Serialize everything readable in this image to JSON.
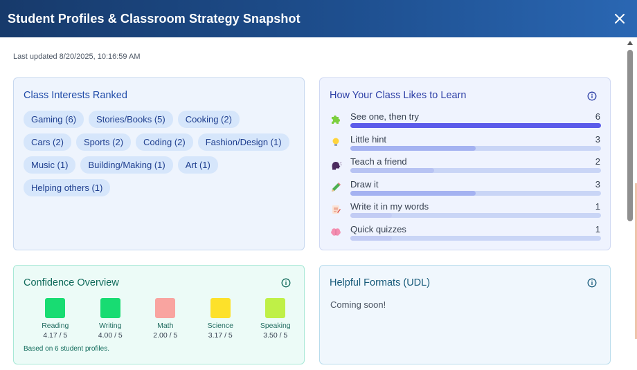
{
  "header": {
    "title": "Student Profiles & Classroom Strategy Snapshot",
    "close_icon": "close-icon"
  },
  "last_updated": "Last updated 8/20/2025, 10:16:59 AM",
  "interests": {
    "title": "Class Interests Ranked",
    "rows": [
      [
        "Gaming (6)",
        "Stories/Books (5)",
        "Cooking (2)"
      ],
      [
        "Cars (2)",
        "Sports (2)",
        "Coding (2)",
        "Fashion/Design (1)"
      ],
      [
        "Music (1)",
        "Building/Making (1)",
        "Art (1)"
      ],
      [
        "Helping others (1)"
      ]
    ]
  },
  "learn": {
    "title": "How Your Class Likes to Learn",
    "max": 6,
    "items": [
      {
        "emoji": "puzzle-icon",
        "label": "See one, then try",
        "count": "6",
        "value": 6,
        "color": "#5b5bea"
      },
      {
        "emoji": "lightbulb-icon",
        "label": "Little hint",
        "count": "3",
        "value": 3,
        "color": "#a4b2f1"
      },
      {
        "emoji": "speaking-head-icon",
        "label": "Teach a friend",
        "count": "2",
        "value": 2,
        "color": "#b7c3f3"
      },
      {
        "emoji": "pencil-icon",
        "label": "Draw it",
        "count": "3",
        "value": 3,
        "color": "#a4b2f1"
      },
      {
        "emoji": "memo-icon",
        "label": "Write it in my words",
        "count": "1",
        "value": 1,
        "color": "#c2ccf4"
      },
      {
        "emoji": "brain-icon",
        "label": "Quick quizzes",
        "count": "1",
        "value": 1,
        "color": "#c2ccf4"
      }
    ]
  },
  "confidence": {
    "title": "Confidence Overview",
    "items": [
      {
        "name": "Reading",
        "score": "4.17 / 5",
        "color": "#18dc72"
      },
      {
        "name": "Writing",
        "score": "4.00 / 5",
        "color": "#18dc72"
      },
      {
        "name": "Math",
        "score": "2.00 / 5",
        "color": "#f9a4a0"
      },
      {
        "name": "Science",
        "score": "3.17 / 5",
        "color": "#fde12a"
      },
      {
        "name": "Speaking",
        "score": "3.50 / 5",
        "color": "#bff047"
      }
    ],
    "note": "Based on 6 student profiles."
  },
  "udl": {
    "title": "Helpful Formats (UDL)",
    "note": "Coming soon!"
  }
}
